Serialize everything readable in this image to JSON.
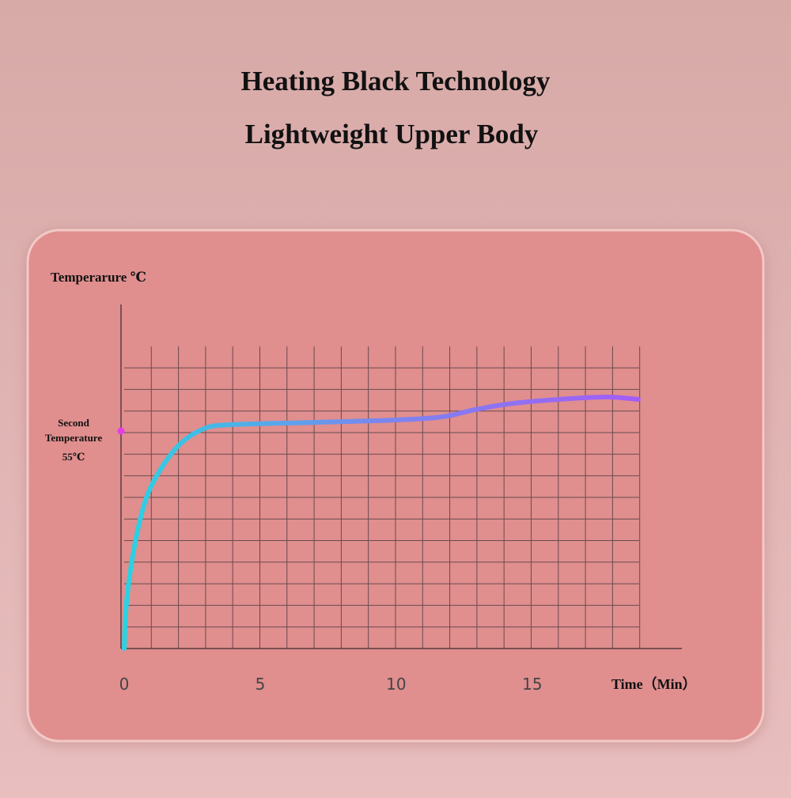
{
  "header": {
    "title": "Heating Black Technology",
    "subtitle": "Lightweight Upper Body"
  },
  "chart_data": {
    "type": "line",
    "ylabel": "Temperarure ℃",
    "xlabel": "Time（Min）",
    "annotation": [
      "Second",
      "Temperature"
    ],
    "x": [
      0,
      0.09,
      0.38,
      0.81,
      1.4,
      2.1,
      2.94,
      3.87,
      7.06,
      10,
      11.7,
      12.9,
      14.3,
      16.4,
      17.8,
      18.9
    ],
    "values": [
      0,
      12,
      26,
      38,
      46,
      52,
      55.6,
      56.6,
      57.2,
      57.8,
      58.6,
      60.4,
      62,
      63.2,
      63.6,
      63
    ],
    "colors": [
      "#29d3e2",
      "#7a86f0",
      "#a45cf6"
    ],
    "marker_color": "#e43ee6",
    "xlim": [
      0,
      20.5
    ],
    "ylim": [
      0,
      87
    ],
    "xticks": [
      0,
      5,
      10,
      15
    ],
    "yticks": [
      {
        "value": 55,
        "label": "55℃"
      }
    ],
    "grid": true
  }
}
